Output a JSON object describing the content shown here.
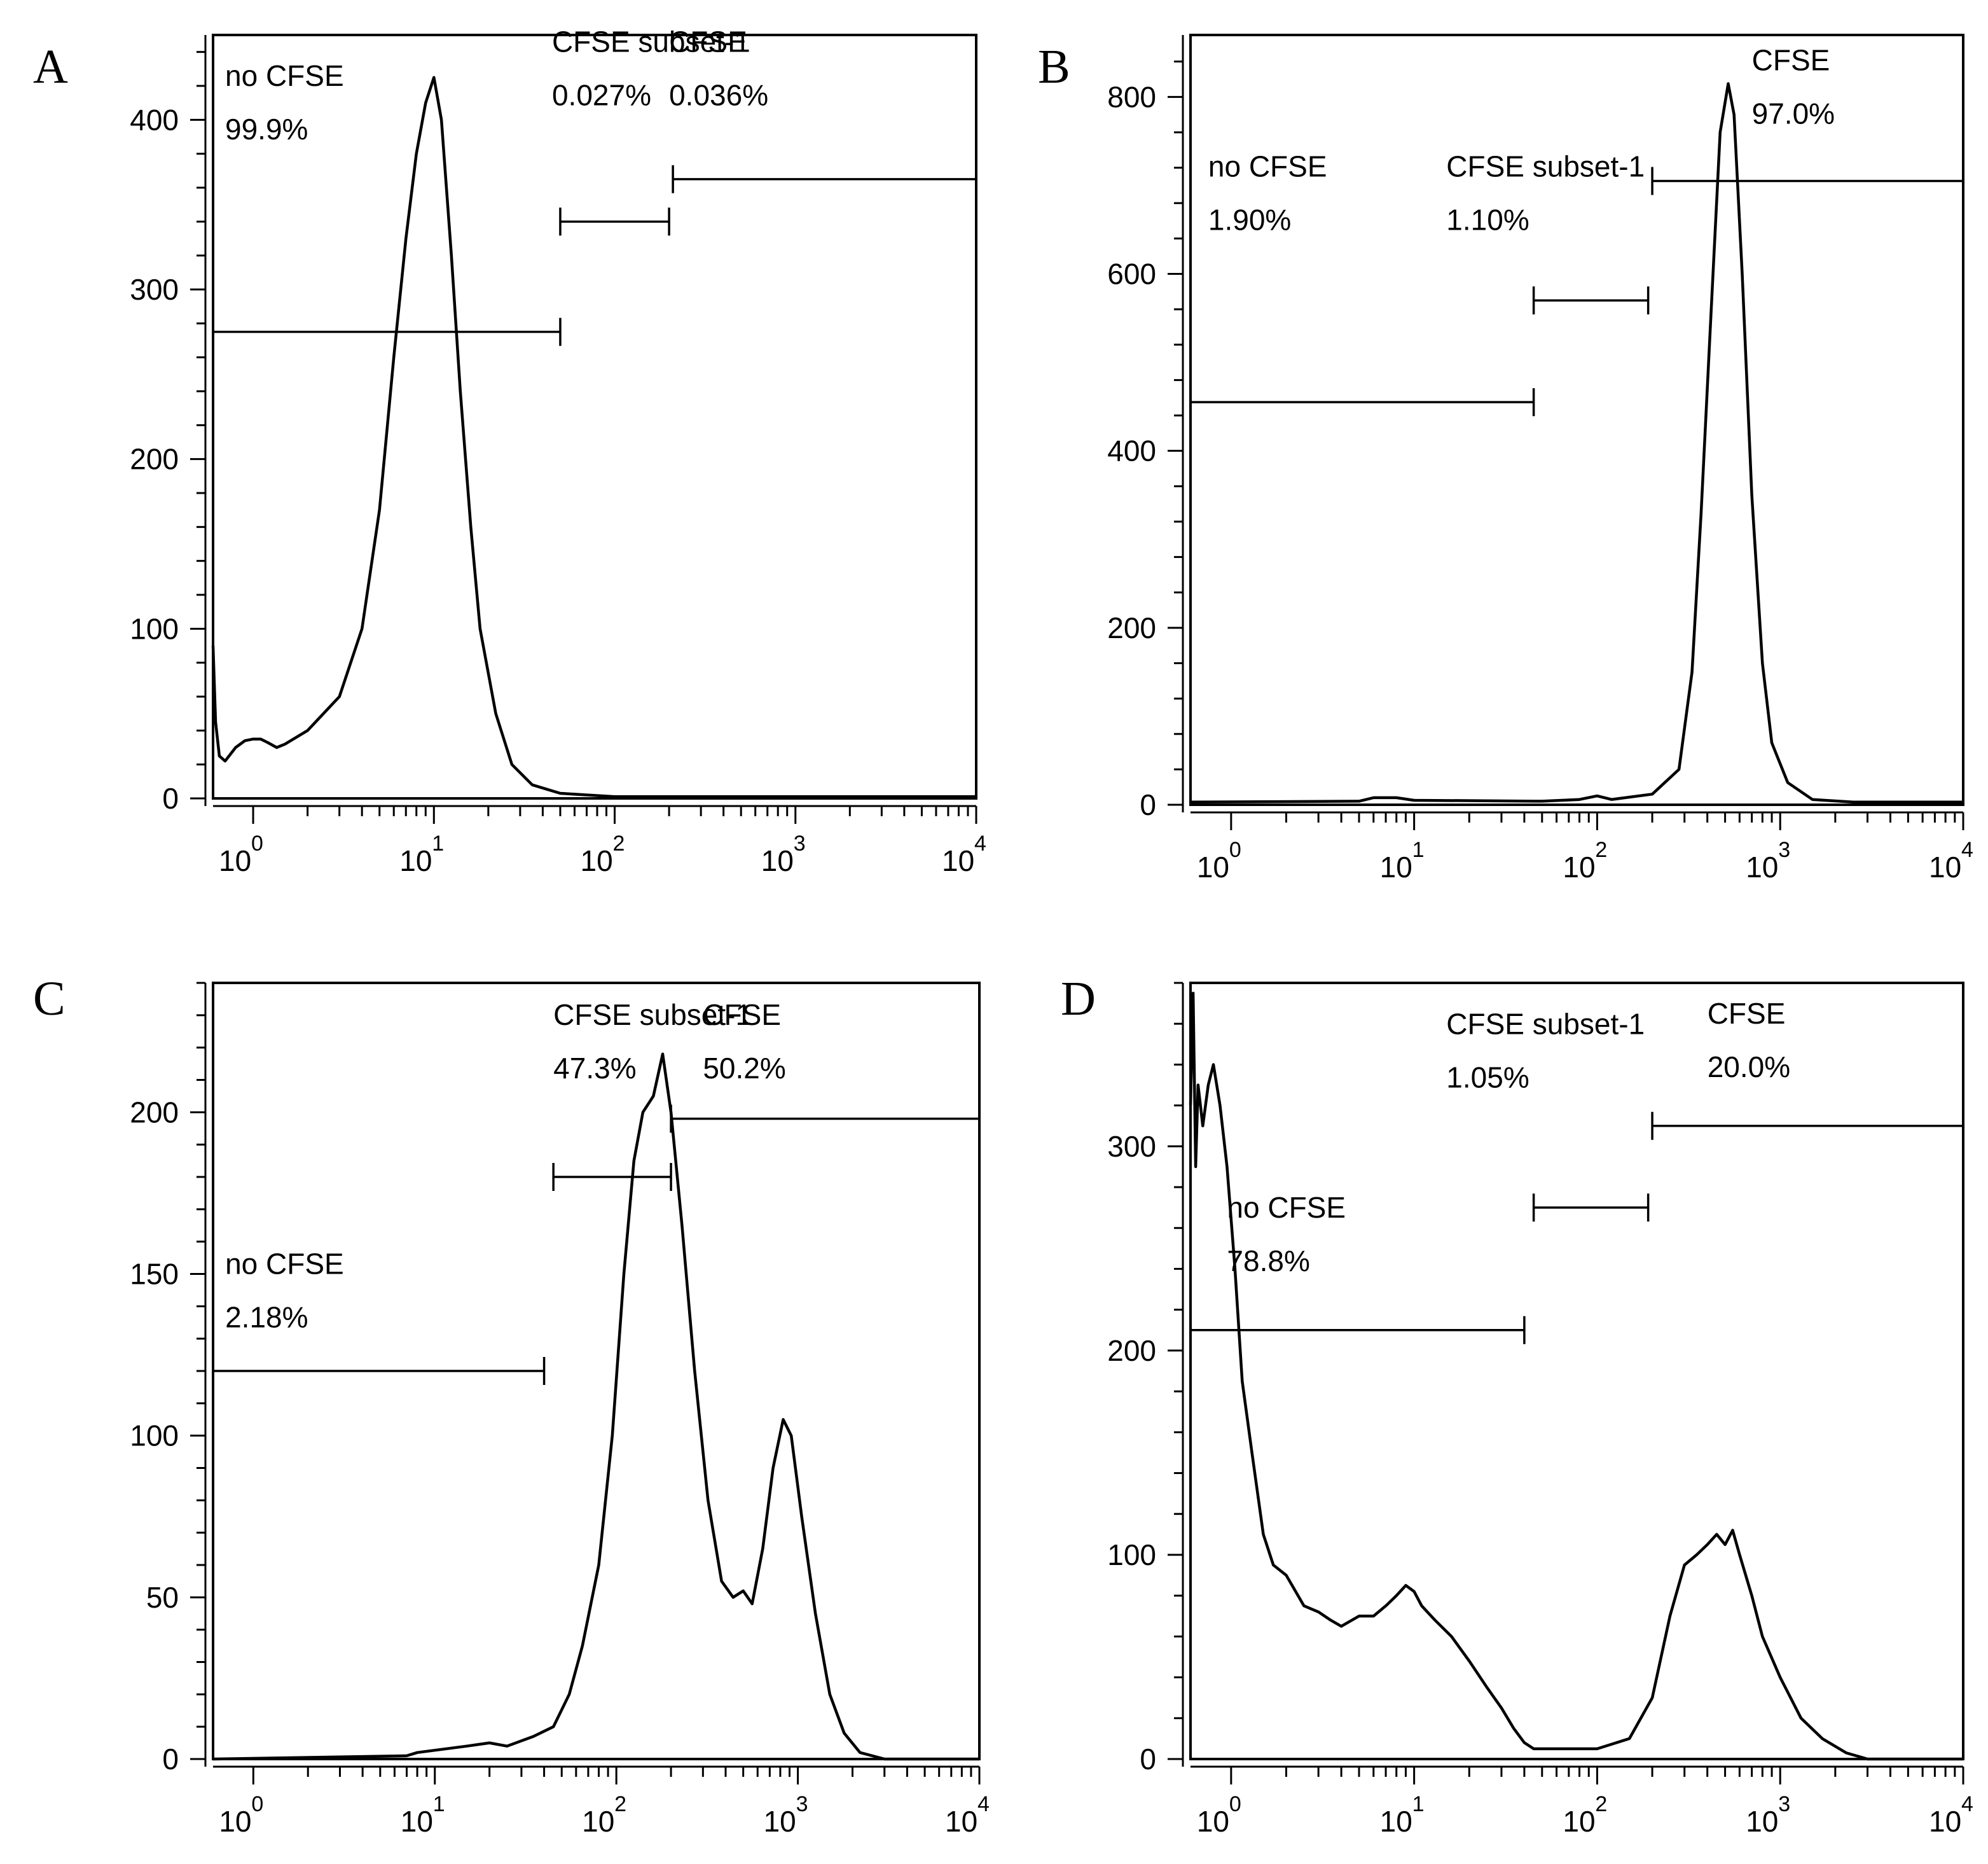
{
  "chart_data": [
    {
      "panel": "A",
      "type": "line",
      "x_scale": "log",
      "xlim": [
        0.6,
        10000
      ],
      "ylim": [
        0,
        450
      ],
      "yticks": [
        0,
        100,
        200,
        300,
        400
      ],
      "x_tick_labels": [
        {
          "base": "10",
          "exp": "0"
        },
        {
          "base": "10",
          "exp": "1"
        },
        {
          "base": "10",
          "exp": "2"
        },
        {
          "base": "10",
          "exp": "3"
        },
        {
          "base": "10",
          "exp": "4"
        }
      ],
      "series": [
        {
          "name": "histogram",
          "points": [
            [
              0.6,
              90
            ],
            [
              0.62,
              45
            ],
            [
              0.65,
              25
            ],
            [
              0.7,
              22
            ],
            [
              0.8,
              30
            ],
            [
              0.9,
              34
            ],
            [
              1.0,
              35
            ],
            [
              1.1,
              35
            ],
            [
              1.2,
              33
            ],
            [
              1.35,
              30
            ],
            [
              1.5,
              32
            ],
            [
              2.0,
              40
            ],
            [
              3.0,
              60
            ],
            [
              4.0,
              100
            ],
            [
              5.0,
              170
            ],
            [
              6.0,
              260
            ],
            [
              7.0,
              330
            ],
            [
              8.0,
              380
            ],
            [
              9.0,
              410
            ],
            [
              10.0,
              425
            ],
            [
              11.0,
              400
            ],
            [
              12.5,
              320
            ],
            [
              14.0,
              240
            ],
            [
              16.0,
              160
            ],
            [
              18.0,
              100
            ],
            [
              22.0,
              50
            ],
            [
              27.0,
              20
            ],
            [
              35.0,
              8
            ],
            [
              50.0,
              3
            ],
            [
              100.0,
              1
            ],
            [
              1000.0,
              1
            ],
            [
              10000.0,
              1
            ]
          ]
        }
      ],
      "gates": [
        {
          "name": "no CFSE",
          "percent": "99.9%",
          "x_start": 0.6,
          "x_end": 50,
          "y": 275,
          "label_x": 0.7,
          "label_y": 420
        },
        {
          "name": "CFSE subset-1",
          "percent": "0.027%",
          "x_start": 50,
          "x_end": 200,
          "y": 340,
          "label_x": 45,
          "label_y": 440
        },
        {
          "name": "CFSE",
          "percent": "0.036%",
          "x_start": 210,
          "x_end": 10000,
          "y": 365,
          "label_x": 200,
          "label_y": 440
        }
      ]
    },
    {
      "panel": "B",
      "type": "line",
      "x_scale": "log",
      "xlim": [
        0.6,
        10000
      ],
      "ylim": [
        0,
        870
      ],
      "yticks": [
        0,
        200,
        400,
        600,
        800
      ],
      "x_tick_labels": [
        {
          "base": "10",
          "exp": "0"
        },
        {
          "base": "10",
          "exp": "1"
        },
        {
          "base": "10",
          "exp": "2"
        },
        {
          "base": "10",
          "exp": "3"
        },
        {
          "base": "10",
          "exp": "4"
        }
      ],
      "series": [
        {
          "name": "histogram",
          "points": [
            [
              0.6,
              3
            ],
            [
              5.0,
              4
            ],
            [
              6.0,
              8
            ],
            [
              8.0,
              8
            ],
            [
              10.0,
              5
            ],
            [
              50.0,
              4
            ],
            [
              80.0,
              6
            ],
            [
              100.0,
              10
            ],
            [
              120.0,
              6
            ],
            [
              200.0,
              12
            ],
            [
              280.0,
              40
            ],
            [
              330.0,
              150
            ],
            [
              370.0,
              330
            ],
            [
              420.0,
              560
            ],
            [
              470.0,
              760
            ],
            [
              520.0,
              815
            ],
            [
              560.0,
              780
            ],
            [
              620.0,
              600
            ],
            [
              700.0,
              350
            ],
            [
              800.0,
              160
            ],
            [
              900.0,
              70
            ],
            [
              1100.0,
              25
            ],
            [
              1500.0,
              6
            ],
            [
              2500.0,
              3
            ],
            [
              10000.0,
              3
            ]
          ]
        }
      ],
      "gates": [
        {
          "name": "no CFSE",
          "percent": "1.90%",
          "x_start": 0.6,
          "x_end": 45,
          "y": 455,
          "label_x": 0.75,
          "label_y": 710
        },
        {
          "name": "CFSE subset-1",
          "percent": "1.10%",
          "x_start": 45,
          "x_end": 190,
          "y": 570,
          "label_x": 15,
          "label_y": 710
        },
        {
          "name": "CFSE",
          "percent": "97.0%",
          "x_start": 200,
          "x_end": 10000,
          "y": 705,
          "label_x": 700,
          "label_y": 830
        }
      ]
    },
    {
      "panel": "C",
      "type": "line",
      "x_scale": "log",
      "xlim": [
        0.6,
        10000
      ],
      "ylim": [
        0,
        240
      ],
      "yticks": [
        0,
        50,
        100,
        150,
        200
      ],
      "x_tick_labels": [
        {
          "base": "10",
          "exp": "0"
        },
        {
          "base": "10",
          "exp": "1"
        },
        {
          "base": "10",
          "exp": "2"
        },
        {
          "base": "10",
          "exp": "3"
        },
        {
          "base": "10",
          "exp": "4"
        }
      ],
      "series": [
        {
          "name": "histogram",
          "points": [
            [
              0.6,
              0
            ],
            [
              7.0,
              1
            ],
            [
              8.0,
              2
            ],
            [
              15.0,
              4
            ],
            [
              20.0,
              5
            ],
            [
              25.0,
              4
            ],
            [
              35.0,
              7
            ],
            [
              45.0,
              10
            ],
            [
              55.0,
              20
            ],
            [
              65.0,
              35
            ],
            [
              80.0,
              60
            ],
            [
              95.0,
              100
            ],
            [
              110.0,
              150
            ],
            [
              125.0,
              185
            ],
            [
              140.0,
              200
            ],
            [
              160.0,
              205
            ],
            [
              180.0,
              218
            ],
            [
              200.0,
              200
            ],
            [
              230.0,
              165
            ],
            [
              270.0,
              120
            ],
            [
              320.0,
              80
            ],
            [
              380.0,
              55
            ],
            [
              440.0,
              50
            ],
            [
              500.0,
              52
            ],
            [
              560.0,
              48
            ],
            [
              640.0,
              65
            ],
            [
              730.0,
              90
            ],
            [
              830.0,
              105
            ],
            [
              920.0,
              100
            ],
            [
              1050.0,
              75
            ],
            [
              1250.0,
              45
            ],
            [
              1500.0,
              20
            ],
            [
              1800.0,
              8
            ],
            [
              2200.0,
              2
            ],
            [
              3000.0,
              0
            ],
            [
              10000.0,
              0
            ]
          ]
        }
      ],
      "gates": [
        {
          "name": "no CFSE",
          "percent": "2.18%",
          "x_start": 0.6,
          "x_end": 40,
          "y": 120,
          "label_x": 0.7,
          "label_y": 150
        },
        {
          "name": "CFSE subset-1",
          "percent": "47.3%",
          "x_start": 45,
          "x_end": 200,
          "y": 180,
          "label_x": 45,
          "label_y": 227
        },
        {
          "name": "CFSE",
          "percent": "50.2%",
          "x_start": 200,
          "x_end": 10000,
          "y": 198,
          "label_x": 300,
          "label_y": 227
        }
      ]
    },
    {
      "panel": "D",
      "type": "line",
      "x_scale": "log",
      "xlim": [
        0.6,
        10000
      ],
      "ylim": [
        0,
        380
      ],
      "yticks": [
        0,
        100,
        200,
        300
      ],
      "x_tick_labels": [
        {
          "base": "10",
          "exp": "0"
        },
        {
          "base": "10",
          "exp": "1"
        },
        {
          "base": "10",
          "exp": "2"
        },
        {
          "base": "10",
          "exp": "3"
        },
        {
          "base": "10",
          "exp": "4"
        }
      ],
      "series": [
        {
          "name": "histogram",
          "points": [
            [
              0.6,
              320
            ],
            [
              0.62,
              375
            ],
            [
              0.64,
              290
            ],
            [
              0.66,
              330
            ],
            [
              0.7,
              310
            ],
            [
              0.75,
              330
            ],
            [
              0.8,
              340
            ],
            [
              0.87,
              320
            ],
            [
              0.95,
              290
            ],
            [
              1.05,
              240
            ],
            [
              1.15,
              185
            ],
            [
              1.3,
              150
            ],
            [
              1.5,
              110
            ],
            [
              1.7,
              95
            ],
            [
              2.0,
              90
            ],
            [
              2.5,
              75
            ],
            [
              3.0,
              72
            ],
            [
              3.5,
              68
            ],
            [
              4.0,
              65
            ],
            [
              5.0,
              70
            ],
            [
              6.0,
              70
            ],
            [
              7.0,
              75
            ],
            [
              8.0,
              80
            ],
            [
              9.0,
              85
            ],
            [
              10.0,
              82
            ],
            [
              11.0,
              75
            ],
            [
              13.0,
              68
            ],
            [
              16.0,
              60
            ],
            [
              20.0,
              48
            ],
            [
              25.0,
              35
            ],
            [
              30.0,
              25
            ],
            [
              35.0,
              15
            ],
            [
              40.0,
              8
            ],
            [
              45.0,
              5
            ],
            [
              100.0,
              5
            ],
            [
              150.0,
              10
            ],
            [
              200.0,
              30
            ],
            [
              250.0,
              70
            ],
            [
              300.0,
              95
            ],
            [
              350.0,
              100
            ],
            [
              400.0,
              105
            ],
            [
              450.0,
              110
            ],
            [
              500.0,
              105
            ],
            [
              550.0,
              112
            ],
            [
              600.0,
              100
            ],
            [
              700.0,
              80
            ],
            [
              800.0,
              60
            ],
            [
              1000.0,
              40
            ],
            [
              1300.0,
              20
            ],
            [
              1700.0,
              10
            ],
            [
              2300.0,
              3
            ],
            [
              3000.0,
              0
            ],
            [
              10000.0,
              0
            ]
          ]
        }
      ],
      "gates": [
        {
          "name": "no CFSE",
          "percent": "78.8%",
          "x_start": 0.6,
          "x_end": 40,
          "y": 210,
          "label_x": 0.95,
          "label_y": 265
        },
        {
          "name": "CFSE subset-1",
          "percent": "1.05%",
          "x_start": 45,
          "x_end": 190,
          "y": 270,
          "label_x": 15,
          "label_y": 355
        },
        {
          "name": "CFSE",
          "percent": "20.0%",
          "x_start": 200,
          "x_end": 10000,
          "y": 310,
          "label_x": 400,
          "label_y": 360
        }
      ]
    }
  ]
}
